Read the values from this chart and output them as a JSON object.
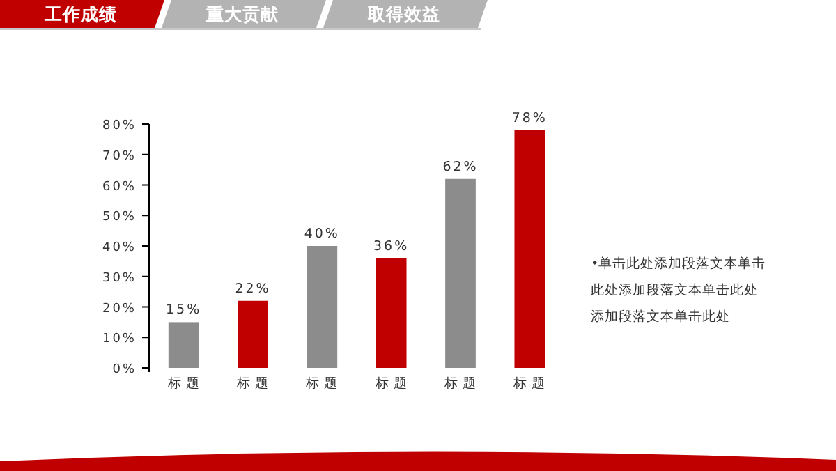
{
  "chart_data": {
    "type": "bar",
    "categories": [
      "标 题",
      "标 题",
      "标 题",
      "标 题",
      "标 题",
      "标 题"
    ],
    "values": [
      15,
      22,
      40,
      36,
      62,
      78
    ],
    "colors": [
      "#8c8c8c",
      "#c00000",
      "#8c8c8c",
      "#c00000",
      "#8c8c8c",
      "#c00000"
    ],
    "value_labels": [
      "15%",
      "22%",
      "40%",
      "36%",
      "62%",
      "78%"
    ],
    "ylim": [
      0,
      80
    ],
    "yticks": [
      {
        "value": 0,
        "label": "0%"
      },
      {
        "value": 10,
        "label": "10%"
      },
      {
        "value": 20,
        "label": "20%"
      },
      {
        "value": 30,
        "label": "30%"
      },
      {
        "value": 40,
        "label": "40%"
      },
      {
        "value": 50,
        "label": "50%"
      },
      {
        "value": 60,
        "label": "60%"
      },
      {
        "value": 70,
        "label": "70%"
      },
      {
        "value": 80,
        "label": "80%"
      }
    ],
    "grid": false,
    "annotations": [
      "工作成绩",
      "重大贡献",
      "取得效益",
      "•单击此处添加段落文本单击此处添加段落文本单击此处添加段落文本单击此处"
    ]
  }
}
